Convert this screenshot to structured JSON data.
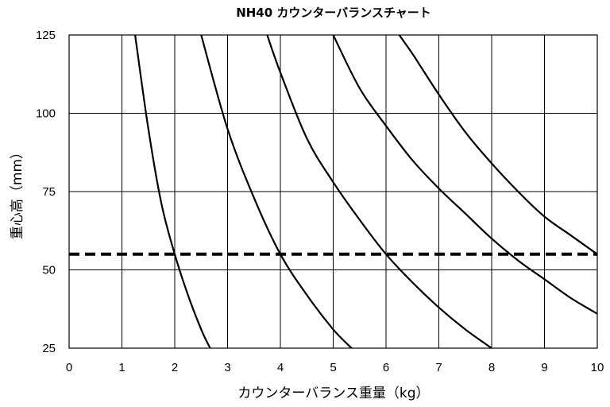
{
  "chart_data": {
    "type": "line",
    "title": "NH40  カウンターバランスチャート",
    "xlabel": "カウンターバランス重量（kg）",
    "ylabel": "重心高（mm）",
    "xlim": [
      0,
      10
    ],
    "ylim": [
      25,
      125
    ],
    "xticks": [
      0,
      1,
      2,
      3,
      4,
      5,
      6,
      7,
      8,
      9,
      10
    ],
    "yticks": [
      25,
      50,
      75,
      100,
      125
    ],
    "grid": true,
    "legend": "none",
    "colors": {
      "curve": "#000000",
      "grid": "#000000",
      "reference": "#000000"
    },
    "series": [
      {
        "x": [
          1.25,
          1.5,
          1.75,
          2.0,
          2.25,
          2.5,
          2.67
        ],
        "y": [
          125,
          95,
          71,
          55,
          42,
          31,
          25
        ]
      },
      {
        "x": [
          2.5,
          3.0,
          3.5,
          4.0,
          4.5,
          5.0,
          5.35
        ],
        "y": [
          125,
          95,
          73,
          55,
          42,
          31,
          25
        ]
      },
      {
        "x": [
          3.75,
          4.0,
          4.5,
          5.0,
          5.5,
          6.0,
          6.5,
          7.0,
          7.5,
          8.0
        ],
        "y": [
          125,
          113,
          92,
          78,
          66,
          55,
          46,
          38,
          31,
          25
        ]
      },
      {
        "x": [
          5.0,
          5.5,
          6.0,
          6.5,
          7.0,
          7.5,
          8.0,
          8.5,
          9.0,
          9.5,
          10.0
        ],
        "y": [
          125,
          108,
          96,
          85,
          76,
          68,
          60,
          53,
          47,
          41,
          36
        ]
      },
      {
        "x": [
          6.25,
          6.5,
          7.0,
          7.5,
          8.0,
          8.5,
          9.0,
          9.5,
          10.0
        ],
        "y": [
          125,
          119,
          106,
          94,
          84,
          75,
          67,
          61,
          55
        ]
      }
    ],
    "reference_line": {
      "y": 55,
      "style": "dashed"
    }
  }
}
